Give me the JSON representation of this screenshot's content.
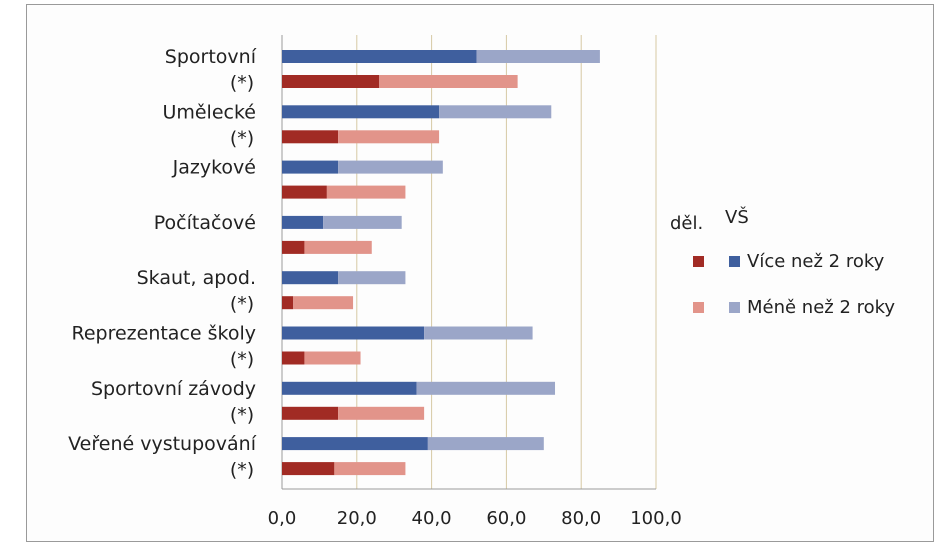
{
  "chart_data": {
    "type": "bar",
    "orientation": "horizontal",
    "stacked": true,
    "categories": [
      [
        "Sportovní",
        "(*)"
      ],
      [
        "Umělecké",
        "(*)"
      ],
      [
        "Jazykové",
        ""
      ],
      [
        "Počítačové",
        ""
      ],
      [
        "Skaut, apod.",
        "(*)"
      ],
      [
        "Reprezentace školy",
        "(*)"
      ],
      [
        "Sportovní závody",
        "(*)"
      ],
      [
        "Veřené vystupování",
        "(*)"
      ]
    ],
    "groups": [
      {
        "name": "VŠ",
        "series": [
          {
            "name": "Více než 2 roky",
            "color": "#3f5f9e",
            "values": [
              52,
              42,
              15,
              11,
              15,
              38,
              36,
              39
            ]
          },
          {
            "name": "Méně než 2 roky",
            "color": "#9ba6c8",
            "values": [
              33,
              30,
              28,
              21,
              18,
              29,
              37,
              31
            ]
          }
        ]
      },
      {
        "name": "děl.",
        "series": [
          {
            "name": "Více než 2 roky",
            "color": "#a12b24",
            "values": [
              26,
              15,
              12,
              6,
              3,
              6,
              15,
              14
            ]
          },
          {
            "name": "Méně než 2 roky",
            "color": "#e2948a",
            "values": [
              37,
              27,
              21,
              18,
              16,
              15,
              23,
              19
            ]
          }
        ]
      }
    ],
    "xlim": [
      0,
      100
    ],
    "xticks": [
      "0,0",
      "20,0",
      "40,0",
      "60,0",
      "80,0",
      "100,0"
    ],
    "grid": true,
    "legend": {
      "placement": "right",
      "headers": [
        "děl.",
        "VŠ"
      ],
      "labels": [
        "Více než 2 roky",
        "Méně než 2 roky"
      ]
    }
  }
}
